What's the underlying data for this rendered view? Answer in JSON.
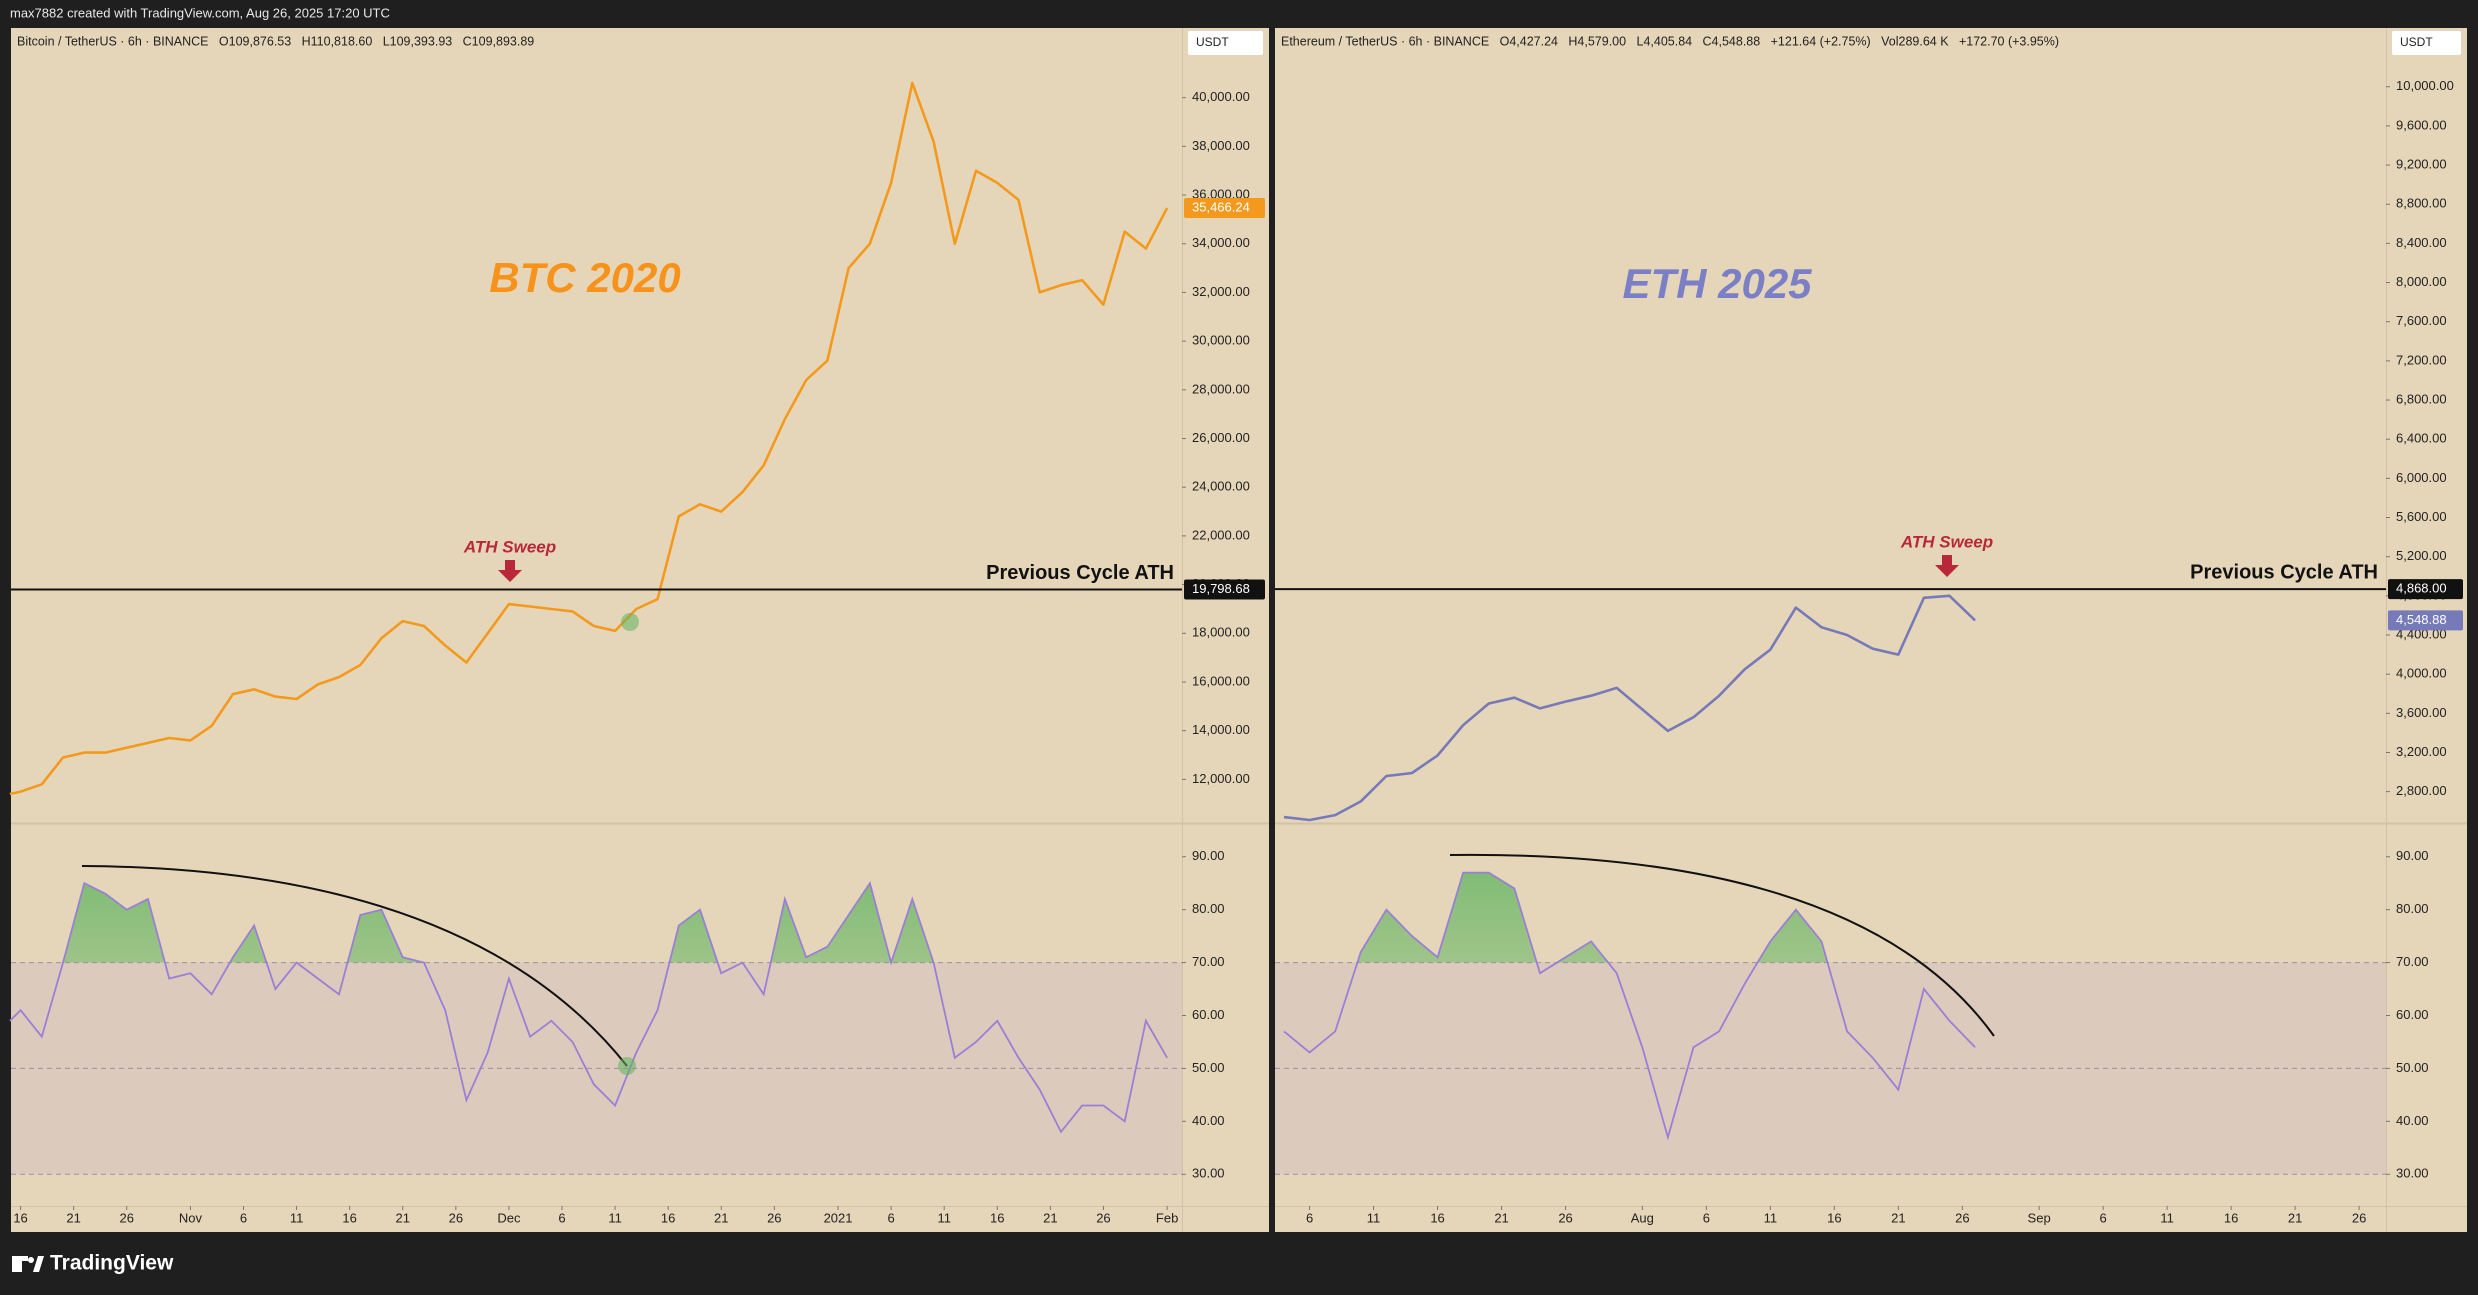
{
  "header": {
    "caption": "max7882 created with TradingView.com, Aug 26, 2025 17:20 UTC"
  },
  "footer": {
    "brand": "TradingView"
  },
  "chart_data": [
    {
      "type": "line",
      "legend_text": "Bitcoin / TetherUS · 6h · BINANCE   O109,876.53   H110,818.60   L109,393.93   C109,893.89",
      "currency": "USDT",
      "title": "BTC 2020",
      "title_color": "#f7931a",
      "annotation": "ATH Sweep",
      "hline_label": "Previous Cycle ATH",
      "hline": {
        "value": 19798.68,
        "label": "19,798.68"
      },
      "last_price": {
        "value": 35466.24,
        "label": "35,466.24"
      },
      "color": "#f39a1e",
      "x": [
        -1,
        0,
        2,
        4,
        6,
        8,
        10,
        12,
        14,
        16,
        18,
        20,
        22,
        24,
        26,
        28,
        30,
        32,
        34,
        36,
        38,
        40,
        42,
        44,
        46,
        48,
        50,
        52,
        54,
        56,
        58,
        60,
        62,
        64,
        66,
        68,
        70,
        72,
        74,
        76,
        78,
        80,
        82,
        84,
        86,
        88,
        90,
        92,
        94,
        96,
        98,
        100,
        102,
        104,
        106,
        108
      ],
      "values": [
        11400,
        11500,
        11800,
        12900,
        13100,
        13100,
        13300,
        13500,
        13700,
        13600,
        14200,
        15500,
        15700,
        15400,
        15300,
        15900,
        16200,
        16700,
        17800,
        18500,
        18300,
        17500,
        16800,
        18000,
        19200,
        19100,
        19000,
        18900,
        18300,
        18100,
        19000,
        19400,
        22800,
        23300,
        23000,
        23800,
        24900,
        26800,
        28400,
        29200,
        33000,
        34000,
        36500,
        40600,
        38200,
        34000,
        37000,
        36500,
        35800,
        32000,
        32300,
        32500,
        31500,
        34500,
        33800,
        35466.24
      ],
      "xlim": [
        -0.9,
        109.4
      ],
      "xticks": [
        {
          "value": 0,
          "label": "16"
        },
        {
          "value": 5,
          "label": "21"
        },
        {
          "value": 10,
          "label": "26"
        },
        {
          "value": 16,
          "label": "Nov"
        },
        {
          "value": 21,
          "label": "6"
        },
        {
          "value": 26,
          "label": "11"
        },
        {
          "value": 31,
          "label": "16"
        },
        {
          "value": 36,
          "label": "21"
        },
        {
          "value": 41,
          "label": "26"
        },
        {
          "value": 46,
          "label": "Dec"
        },
        {
          "value": 51,
          "label": "6"
        },
        {
          "value": 56,
          "label": "11"
        },
        {
          "value": 61,
          "label": "16"
        },
        {
          "value": 66,
          "label": "21"
        },
        {
          "value": 71,
          "label": "26"
        },
        {
          "value": 77,
          "label": "2021"
        },
        {
          "value": 82,
          "label": "6"
        },
        {
          "value": 87,
          "label": "11"
        },
        {
          "value": 92,
          "label": "16"
        },
        {
          "value": 97,
          "label": "21"
        },
        {
          "value": 102,
          "label": "26"
        },
        {
          "value": 108,
          "label": "Feb"
        }
      ],
      "ylim": [
        10250,
        42860
      ],
      "yticks": [
        {
          "value": 12000,
          "label": "12,000.00"
        },
        {
          "value": 14000,
          "label": "14,000.00"
        },
        {
          "value": 16000,
          "label": "16,000.00"
        },
        {
          "value": 18000,
          "label": "18,000.00"
        },
        {
          "value": 20000,
          "label": "20,000.00"
        },
        {
          "value": 22000,
          "label": "22,000.00"
        },
        {
          "value": 24000,
          "label": "24,000.00"
        },
        {
          "value": 26000,
          "label": "26,000.00"
        },
        {
          "value": 28000,
          "label": "28,000.00"
        },
        {
          "value": 30000,
          "label": "30,000.00"
        },
        {
          "value": 32000,
          "label": "32,000.00"
        },
        {
          "value": 34000,
          "label": "34,000.00"
        },
        {
          "value": 36000,
          "label": "36,000.00"
        },
        {
          "value": 38000,
          "label": "38,000.00"
        },
        {
          "value": 40000,
          "label": "40,000.00"
        }
      ],
      "rsi": {
        "color": "#9a7fd6",
        "values": [
          59,
          61,
          56,
          70,
          85,
          83,
          80,
          82,
          67,
          68,
          64,
          71,
          77,
          65,
          70,
          67,
          64,
          79,
          80,
          71,
          70,
          61,
          44,
          53,
          67,
          56,
          59,
          55,
          47,
          43,
          53,
          61,
          77,
          80,
          68,
          70,
          64,
          82,
          71,
          73,
          79,
          85,
          70,
          82,
          70,
          52,
          55,
          59,
          52,
          46,
          38,
          43,
          43,
          40,
          59,
          52
        ],
        "ylim": [
          24,
          96
        ],
        "yticks": [
          {
            "value": 30,
            "label": "30.00"
          },
          {
            "value": 40,
            "label": "40.00"
          },
          {
            "value": 50,
            "label": "50.00"
          },
          {
            "value": 60,
            "label": "60.00"
          },
          {
            "value": 70,
            "label": "70.00"
          },
          {
            "value": 80,
            "label": "80.00"
          },
          {
            "value": 90,
            "label": "90.00"
          }
        ],
        "bands": [
          70,
          50,
          30
        ]
      }
    },
    {
      "type": "line",
      "legend_text": "Ethereum / TetherUS · 6h · BINANCE   O4,427.24   H4,579.00   L4,405.84   C4,548.88   +121.64 (+2.75%)   Vol289.64 K   +172.70 (+3.95%)",
      "currency": "USDT",
      "title": "ETH 2025",
      "title_color": "#7a7fc6",
      "annotation": "ATH Sweep",
      "hline_label": "Previous Cycle ATH",
      "hline": {
        "value": 4868,
        "label": "4,868.00"
      },
      "last_price": {
        "value": 4548.88,
        "label": "4,548.88"
      },
      "color": "#767ab8",
      "x": [
        -2,
        0,
        2,
        4,
        6,
        8,
        10,
        12,
        14,
        16,
        18,
        20,
        22,
        24,
        26,
        28,
        30,
        32,
        34,
        36,
        38,
        40,
        42,
        44,
        46,
        48,
        50,
        52
      ],
      "values": [
        2540,
        2510,
        2560,
        2700,
        2960,
        2990,
        3170,
        3480,
        3700,
        3760,
        3650,
        3720,
        3780,
        3860,
        3640,
        3420,
        3560,
        3780,
        4050,
        4250,
        4680,
        4480,
        4400,
        4260,
        4200,
        4780,
        4800,
        4548.88
      ],
      "xlim": [
        -2.7,
        84.1
      ],
      "xticks": [
        {
          "value": 0,
          "label": "6"
        },
        {
          "value": 5,
          "label": "11"
        },
        {
          "value": 10,
          "label": "16"
        },
        {
          "value": 15,
          "label": "21"
        },
        {
          "value": 20,
          "label": "26"
        },
        {
          "value": 26,
          "label": "Aug"
        },
        {
          "value": 31,
          "label": "6"
        },
        {
          "value": 36,
          "label": "11"
        },
        {
          "value": 41,
          "label": "16"
        },
        {
          "value": 46,
          "label": "21"
        },
        {
          "value": 51,
          "label": "26"
        },
        {
          "value": 57,
          "label": "Sep"
        },
        {
          "value": 62,
          "label": "6"
        },
        {
          "value": 67,
          "label": "11"
        },
        {
          "value": 72,
          "label": "16"
        },
        {
          "value": 77,
          "label": "21"
        },
        {
          "value": 82,
          "label": "26"
        }
      ],
      "ylim": [
        2490,
        10600
      ],
      "yticks": [
        {
          "value": 2800,
          "label": "2,800.00"
        },
        {
          "value": 3200,
          "label": "3,200.00"
        },
        {
          "value": 3600,
          "label": "3,600.00"
        },
        {
          "value": 4000,
          "label": "4,000.00"
        },
        {
          "value": 4400,
          "label": "4,400.00"
        },
        {
          "value": 4800,
          "label": "4,800.00"
        },
        {
          "value": 5200,
          "label": "5,200.00"
        },
        {
          "value": 5600,
          "label": "5,600.00"
        },
        {
          "value": 6000,
          "label": "6,000.00"
        },
        {
          "value": 6400,
          "label": "6,400.00"
        },
        {
          "value": 6800,
          "label": "6,800.00"
        },
        {
          "value": 7200,
          "label": "7,200.00"
        },
        {
          "value": 7600,
          "label": "7,600.00"
        },
        {
          "value": 8000,
          "label": "8,000.00"
        },
        {
          "value": 8400,
          "label": "8,400.00"
        },
        {
          "value": 8800,
          "label": "8,800.00"
        },
        {
          "value": 9200,
          "label": "9,200.00"
        },
        {
          "value": 9600,
          "label": "9,600.00"
        },
        {
          "value": 10000,
          "label": "10,000.00"
        }
      ],
      "rsi": {
        "color": "#9a7fd6",
        "values": [
          57,
          53,
          57,
          72,
          80,
          75,
          71,
          87,
          87,
          84,
          68,
          71,
          74,
          68,
          54,
          37,
          54,
          57,
          66,
          74,
          80,
          74,
          57,
          52,
          46,
          65,
          59,
          54
        ],
        "ylim": [
          24,
          96
        ],
        "yticks": [
          {
            "value": 30,
            "label": "30.00"
          },
          {
            "value": 40,
            "label": "40.00"
          },
          {
            "value": 50,
            "label": "50.00"
          },
          {
            "value": 60,
            "label": "60.00"
          },
          {
            "value": 70,
            "label": "70.00"
          },
          {
            "value": 80,
            "label": "80.00"
          },
          {
            "value": 90,
            "label": "90.00"
          }
        ],
        "bands": [
          70,
          50,
          30
        ]
      }
    }
  ]
}
